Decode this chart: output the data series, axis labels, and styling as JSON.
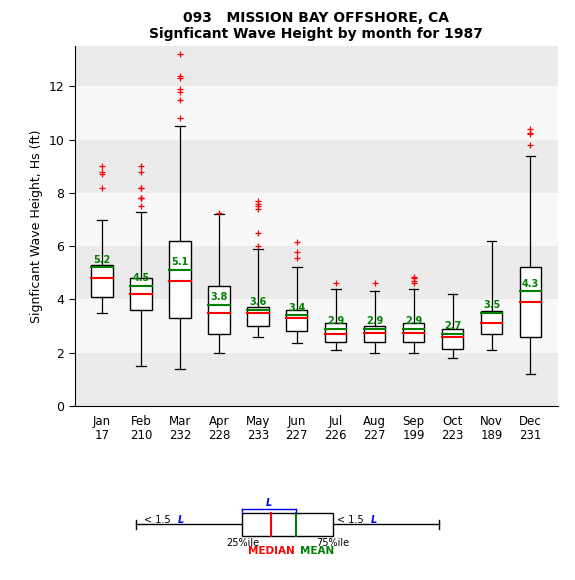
{
  "title_line1": "093   MISSION BAY OFFSHORE, CA",
  "title_line2": "Signficant Wave Height by month for 1987",
  "ylabel": "Signficant Wave Height, Hs (ft)",
  "months": [
    "Jan",
    "Feb",
    "Mar",
    "Apr",
    "May",
    "Jun",
    "Jul",
    "Aug",
    "Sep",
    "Oct",
    "Nov",
    "Dec"
  ],
  "counts": [
    "17",
    "210",
    "232",
    "228",
    "233",
    "227",
    "226",
    "227",
    "199",
    "223",
    "189",
    "231"
  ],
  "means": [
    5.2,
    4.5,
    5.1,
    3.8,
    3.6,
    3.4,
    2.9,
    2.9,
    2.9,
    2.7,
    3.5,
    4.3
  ],
  "medians": [
    4.8,
    4.2,
    4.7,
    3.5,
    3.5,
    3.3,
    2.7,
    2.75,
    2.75,
    2.6,
    3.1,
    3.9
  ],
  "q1": [
    4.1,
    3.6,
    3.3,
    2.7,
    3.0,
    2.8,
    2.4,
    2.4,
    2.4,
    2.15,
    2.7,
    2.6
  ],
  "q3": [
    5.3,
    4.8,
    6.2,
    4.5,
    3.7,
    3.6,
    3.1,
    3.0,
    3.1,
    2.9,
    3.55,
    5.2
  ],
  "whisker_low": [
    3.5,
    1.5,
    1.4,
    2.0,
    2.6,
    2.35,
    2.1,
    2.0,
    2.0,
    1.8,
    2.1,
    1.2
  ],
  "whisker_high": [
    7.0,
    7.3,
    10.5,
    7.2,
    5.9,
    5.2,
    4.4,
    4.3,
    4.4,
    4.2,
    6.2,
    9.4
  ],
  "outliers": [
    [
      8.7,
      8.2,
      8.8,
      9.0
    ],
    [
      7.5,
      7.8,
      7.8,
      7.8,
      8.2,
      8.2,
      8.8,
      9.0
    ],
    [
      10.8,
      11.5,
      11.8,
      11.9,
      12.3,
      12.4,
      13.2
    ],
    [
      7.25
    ],
    [
      6.0,
      6.5,
      7.4,
      7.5,
      7.6,
      7.7
    ],
    [
      5.55,
      5.8,
      6.15
    ],
    [
      4.6
    ],
    [
      4.6
    ],
    [
      4.6,
      4.7,
      4.8,
      4.85
    ],
    [],
    [],
    [
      10.2,
      10.25,
      10.4,
      9.8
    ]
  ],
  "ylim": [
    0,
    13.5
  ],
  "yticks": [
    0,
    2,
    4,
    6,
    8,
    10,
    12
  ],
  "band_colors": [
    "#ebebeb",
    "#f8f8f8"
  ],
  "median_color": "red",
  "mean_color": "green",
  "whisker_color": "black",
  "outlier_color": "red",
  "mean_label_color": "green"
}
